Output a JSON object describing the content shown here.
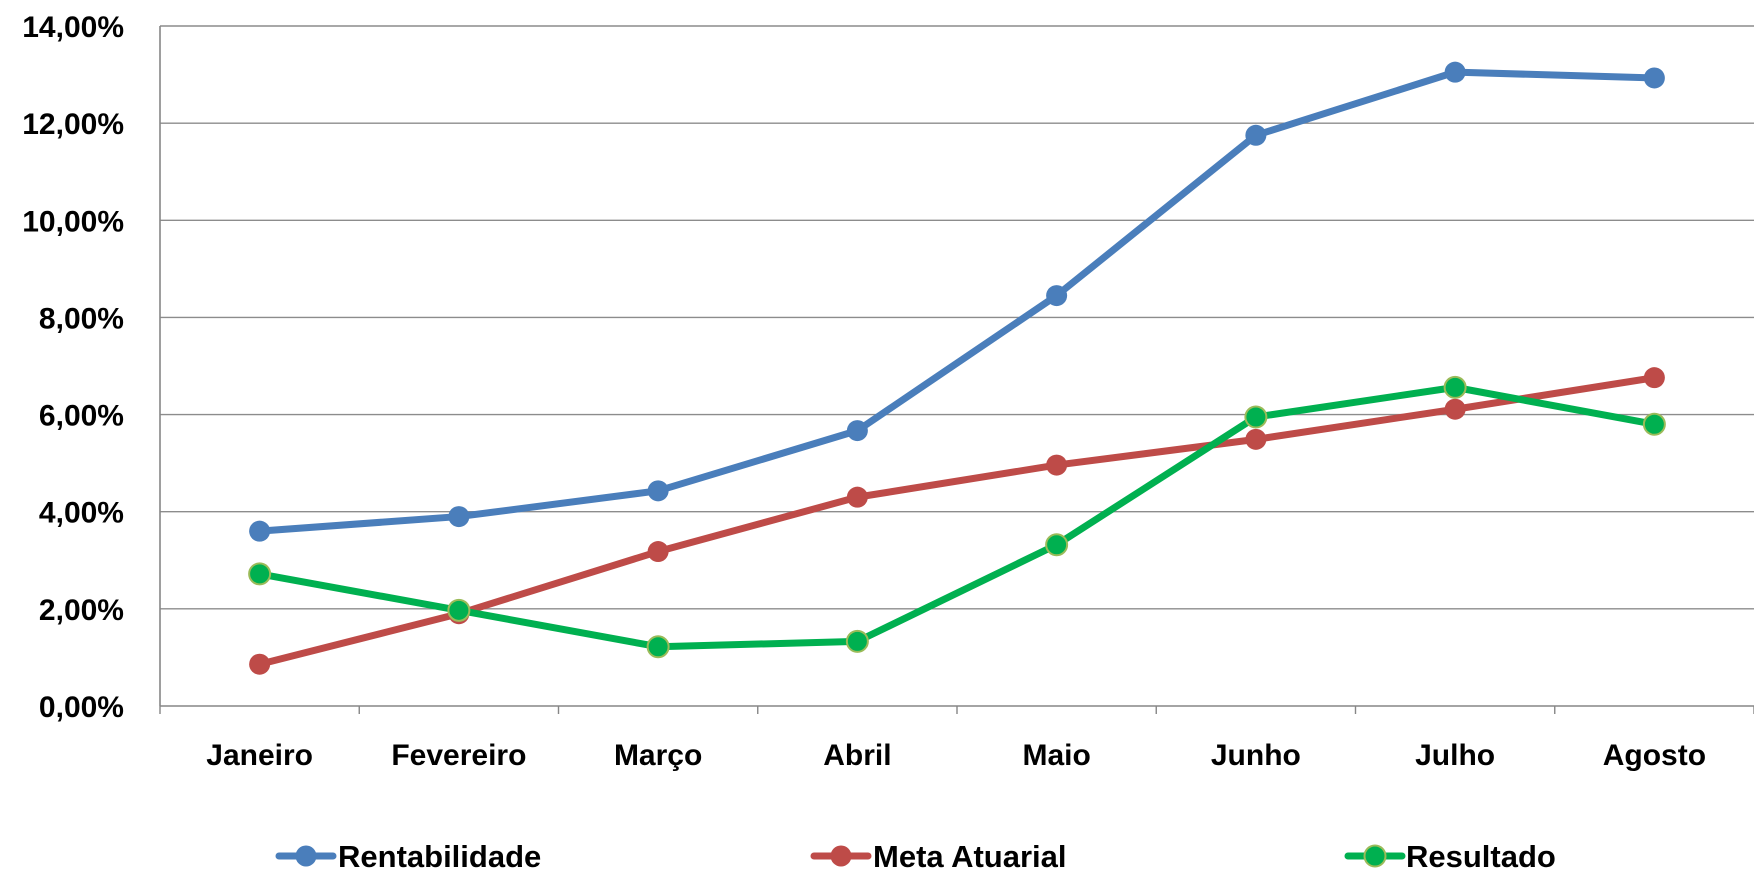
{
  "chart_data": {
    "type": "line",
    "categories": [
      "Janeiro",
      "Fevereiro",
      "Março",
      "Abril",
      "Maio",
      "Junho",
      "Julho",
      "Agosto"
    ],
    "y_tick_labels": [
      "0,00%",
      "2,00%",
      "4,00%",
      "6,00%",
      "8,00%",
      "10,00%",
      "12,00%",
      "14,00%"
    ],
    "ylim": [
      0,
      14
    ],
    "y_unit": "%",
    "grid": true,
    "legend_position": "bottom",
    "series": [
      {
        "name": "Rentabilidade",
        "color": "#4a7ebb",
        "marker_color": "#4a7ebb",
        "values": [
          3.6,
          3.9,
          4.43,
          5.67,
          8.45,
          11.75,
          13.05,
          12.93
        ]
      },
      {
        "name": "Meta Atuarial",
        "color": "#be4b48",
        "marker_color": "#be4b48",
        "values": [
          0.86,
          1.9,
          3.18,
          4.3,
          4.96,
          5.49,
          6.11,
          6.76
        ]
      },
      {
        "name": "Resultado",
        "color": "#00b050",
        "marker_color": "#00b050",
        "marker_edge": "#9bbb59",
        "values": [
          2.72,
          1.97,
          1.22,
          1.33,
          3.32,
          5.95,
          6.56,
          5.8
        ]
      }
    ]
  }
}
